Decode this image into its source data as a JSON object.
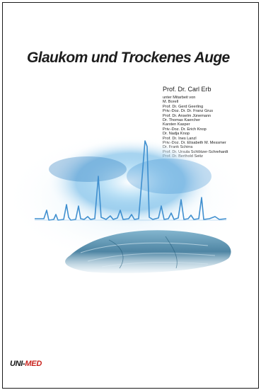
{
  "book": {
    "title": "Glaukom und Trockenes Auge",
    "main_author": "Prof. Dr. Carl Erb",
    "collaboration_label": "unter Mitarbeit von",
    "contributors": [
      "M. Borell",
      "Prof. Dr. Gerd Geerling",
      "Priv.-Doz. Dr. Dr. Franz Grus",
      "Prof. Dr. Anselm Jünemann",
      "Dr. Thomas Kaercher",
      "Karsten Kasper",
      "Priv.-Doz. Dr. Erich Knop",
      "Dr. Nadja Knop",
      "Prof. Dr. Ines Lanzl",
      "Priv.-Doz. Dr. Elisabeth M. Messmer",
      "Dr. Frank Schirra",
      "Prof. Dr. Ursula Schlötzer-Schrehardt",
      "Prof. Dr. Berthold Seitz"
    ]
  },
  "publisher": {
    "logo_text_left": "UNI-",
    "logo_text_right": "MED",
    "accent_color": "#c9231e"
  },
  "artwork": {
    "description_colors": {
      "glow": "#6fb8e6",
      "spectrum": "#3f8fcf",
      "tissue": "#2f6f93"
    }
  }
}
